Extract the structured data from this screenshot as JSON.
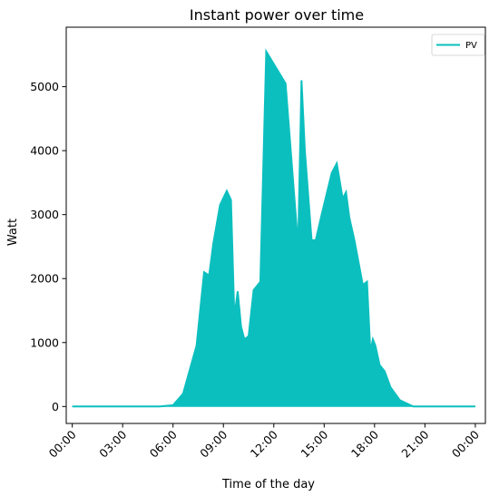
{
  "chart_data": {
    "type": "area",
    "title": "Instant power over time",
    "xlabel": "Time of the day",
    "ylabel": "Watt",
    "xlim": [
      -0.36,
      24.6
    ],
    "ylim": [
      -265,
      5930
    ],
    "x_ticks": [
      0,
      3,
      6,
      9,
      12,
      15,
      18,
      21,
      24
    ],
    "x_tick_labels": [
      "00:00",
      "03:00",
      "06:00",
      "09:00",
      "12:00",
      "15:00",
      "18:00",
      "21:00",
      "00:00"
    ],
    "y_ticks": [
      0,
      1000,
      2000,
      3000,
      4000,
      5000
    ],
    "y_tick_labels": [
      "0",
      "1000",
      "2000",
      "3000",
      "4000",
      "5000"
    ],
    "legend": {
      "position": "top-right",
      "entries": [
        "PV"
      ]
    },
    "colors": {
      "PV": "#0cbfbf"
    },
    "series": [
      {
        "name": "PV",
        "x": [
          0,
          5.2,
          6,
          6.6,
          7.4,
          7.85,
          8.15,
          8.4,
          8.8,
          9.2,
          9.45,
          9.65,
          9.85,
          10.05,
          10.25,
          10.5,
          10.8,
          11.2,
          11.55,
          12.7,
          13.45,
          13.65,
          13.85,
          14.25,
          14.5,
          14.85,
          15.45,
          15.75,
          16.1,
          16.3,
          16.5,
          16.8,
          17.3,
          17.55,
          17.75,
          17.9,
          18.05,
          18.3,
          18.6,
          18.95,
          19.5,
          20.3,
          24
        ],
        "y": [
          0,
          0,
          20,
          200,
          950,
          2100,
          2050,
          2550,
          3150,
          3370,
          3230,
          1400,
          1800,
          1250,
          1050,
          1100,
          1820,
          1950,
          5550,
          5050,
          2500,
          5100,
          4000,
          2600,
          2600,
          3000,
          3650,
          3800,
          3250,
          3350,
          2950,
          2600,
          1900,
          1950,
          850,
          1050,
          950,
          650,
          550,
          300,
          100,
          0,
          0
        ]
      }
    ]
  }
}
